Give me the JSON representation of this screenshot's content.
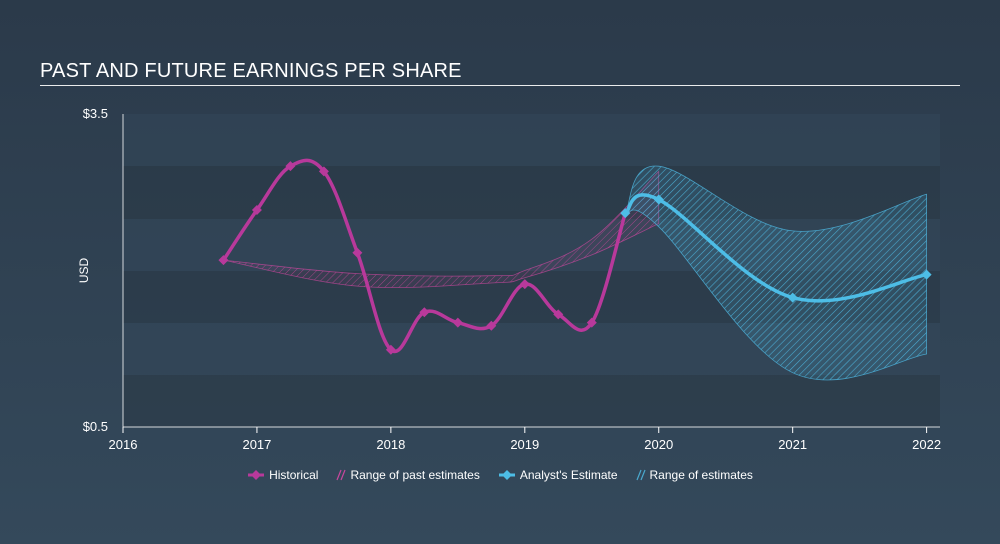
{
  "title": "PAST AND FUTURE EARNINGS PER SHARE",
  "colors": {
    "historical": "#b8399b",
    "past_range": "#c9479e",
    "estimate": "#4dbde6",
    "estimate_range": "#4aa9cf",
    "axis": "#ffffff",
    "band_dark": "#2a3946",
    "band_light": "#33475a"
  },
  "legend": [
    {
      "label": "Historical",
      "icon": "diamond-line-icon",
      "color_key": "historical"
    },
    {
      "label": "Range of past estimates",
      "icon": "hatch-icon",
      "color_key": "past_range"
    },
    {
      "label": "Analyst's Estimate",
      "icon": "diamond-line-icon",
      "color_key": "estimate"
    },
    {
      "label": "Range of estimates",
      "icon": "hatch-icon",
      "color_key": "estimate_range"
    }
  ],
  "chart_data": {
    "type": "line",
    "ylabel": "USD",
    "xlabel": "",
    "ylim": [
      0.5,
      3.5
    ],
    "xlim": [
      2016,
      2022.1
    ],
    "y_tick_labels": [
      {
        "value": 3.5,
        "label": "$3.5"
      },
      {
        "value": 0.5,
        "label": "$0.5"
      }
    ],
    "x_ticks": [
      2016,
      2017,
      2018,
      2019,
      2020,
      2021,
      2022
    ],
    "x_tick_labels": [
      "2016",
      "2017",
      "2018",
      "2019",
      "2020",
      "2021",
      "2022"
    ],
    "series": [
      {
        "name": "Historical",
        "points": [
          [
            2016.75,
            2.1
          ],
          [
            2017.0,
            2.58
          ],
          [
            2017.25,
            3.0
          ],
          [
            2017.5,
            2.95
          ],
          [
            2017.75,
            2.17
          ],
          [
            2018.0,
            1.24
          ],
          [
            2018.25,
            1.6
          ],
          [
            2018.5,
            1.5
          ],
          [
            2018.75,
            1.47
          ],
          [
            2019.0,
            1.87
          ],
          [
            2019.25,
            1.58
          ],
          [
            2019.5,
            1.5
          ],
          [
            2019.75,
            2.55
          ]
        ]
      },
      {
        "name": "Analyst's Estimate",
        "points": [
          [
            2019.75,
            2.55
          ],
          [
            2020.0,
            2.68
          ],
          [
            2021.0,
            1.74
          ],
          [
            2022.0,
            1.96
          ]
        ]
      }
    ],
    "ranges": [
      {
        "name": "Range of past estimates",
        "upper": [
          [
            2016.75,
            2.1
          ],
          [
            2017.75,
            1.97
          ],
          [
            2018.75,
            1.95
          ],
          [
            2019.0,
            2.0
          ],
          [
            2019.5,
            2.3
          ],
          [
            2020.0,
            2.95
          ]
        ],
        "lower": [
          [
            2016.75,
            2.1
          ],
          [
            2017.75,
            1.85
          ],
          [
            2018.75,
            1.88
          ],
          [
            2019.0,
            1.93
          ],
          [
            2019.5,
            2.15
          ],
          [
            2020.0,
            2.45
          ]
        ]
      },
      {
        "name": "Range of estimates",
        "upper": [
          [
            2019.75,
            2.55
          ],
          [
            2020.0,
            3.0
          ],
          [
            2021.0,
            2.38
          ],
          [
            2022.0,
            2.73
          ]
        ],
        "lower": [
          [
            2019.75,
            2.55
          ],
          [
            2020.0,
            2.42
          ],
          [
            2021.0,
            1.02
          ],
          [
            2022.0,
            1.2
          ]
        ]
      }
    ],
    "grid": false,
    "legend_position": "bottom"
  }
}
